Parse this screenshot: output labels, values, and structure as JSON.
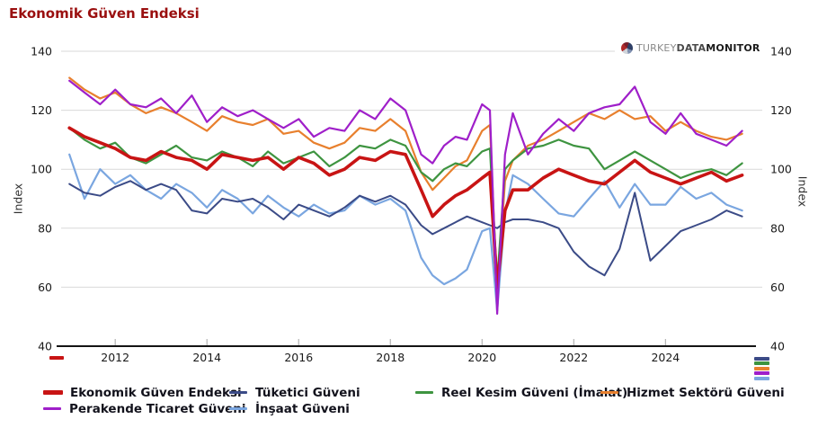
{
  "title": "Ekonomik Güven Endeksi",
  "logo": {
    "turkey": "TURKEY",
    "data": "DATA",
    "monitor": "MONITOR"
  },
  "chart_data": {
    "type": "line",
    "title": "Ekonomik Güven Endeksi",
    "ylabel_left": "Index",
    "ylabel_right": "Index",
    "ylim": [
      40,
      140
    ],
    "yticks": [
      40,
      60,
      80,
      100,
      120,
      140
    ],
    "xticks": [
      2012,
      2014,
      2016,
      2018,
      2020,
      2022,
      2024
    ],
    "xlim": [
      2010.82,
      2026.11
    ],
    "grid": "horizontal-light-gray",
    "legend_position": "bottom",
    "x_unit": "year (monthly index series)",
    "x": [
      2011.0,
      2011.33,
      2011.67,
      2012.0,
      2012.33,
      2012.67,
      2013.0,
      2013.33,
      2013.67,
      2014.0,
      2014.33,
      2014.67,
      2015.0,
      2015.33,
      2015.67,
      2016.0,
      2016.33,
      2016.67,
      2017.0,
      2017.33,
      2017.67,
      2018.0,
      2018.33,
      2018.67,
      2018.92,
      2019.17,
      2019.42,
      2019.67,
      2020.0,
      2020.17,
      2020.33,
      2020.5,
      2020.67,
      2021.0,
      2021.33,
      2021.67,
      2022.0,
      2022.33,
      2022.67,
      2023.0,
      2023.33,
      2023.67,
      2024.0,
      2024.33,
      2024.67,
      2025.0,
      2025.33,
      2025.67
    ],
    "series": [
      {
        "name": "Ekonomik Güven Endeksi",
        "color": "#c81414",
        "width": 3.6,
        "values": [
          114,
          111,
          109,
          107,
          104,
          103,
          106,
          104,
          103,
          100,
          105,
          104,
          103,
          104,
          100,
          104,
          102,
          98,
          100,
          104,
          103,
          106,
          105,
          93,
          84,
          88,
          91,
          93,
          97,
          99,
          60,
          86,
          93,
          93,
          97,
          100,
          98,
          96,
          95,
          99,
          103,
          99,
          97,
          95,
          97,
          99,
          96,
          98
        ]
      },
      {
        "name": "Tüketici Güveni",
        "color": "#3b4b87",
        "width": 2,
        "values": [
          95,
          92,
          91,
          94,
          96,
          93,
          95,
          93,
          86,
          85,
          90,
          89,
          90,
          87,
          83,
          88,
          86,
          84,
          87,
          91,
          89,
          91,
          88,
          81,
          78,
          80,
          82,
          84,
          82,
          81,
          80,
          82,
          83,
          83,
          82,
          80,
          72,
          67,
          64,
          73,
          92,
          69,
          74,
          79,
          81,
          83,
          86,
          84
        ]
      },
      {
        "name": "Reel Kesim Güveni (İmalat)",
        "color": "#3e9440",
        "width": 2.2,
        "values": [
          114,
          110,
          107,
          109,
          104,
          102,
          105,
          108,
          104,
          103,
          106,
          104,
          101,
          106,
          102,
          104,
          106,
          101,
          104,
          108,
          107,
          110,
          108,
          99,
          96,
          100,
          102,
          101,
          106,
          107,
          62,
          100,
          103,
          107,
          108,
          110,
          108,
          107,
          100,
          103,
          106,
          103,
          100,
          97,
          99,
          100,
          98,
          102
        ]
      },
      {
        "name": "Hizmet Sektörü Güveni",
        "color": "#e8802e",
        "width": 2.2,
        "values": [
          131,
          127,
          124,
          126,
          122,
          119,
          121,
          119,
          116,
          113,
          118,
          116,
          115,
          117,
          112,
          113,
          109,
          107,
          109,
          114,
          113,
          117,
          113,
          99,
          93,
          97,
          101,
          103,
          113,
          115,
          57,
          96,
          103,
          108,
          110,
          113,
          116,
          119,
          117,
          120,
          117,
          118,
          113,
          116,
          113,
          111,
          110,
          112
        ]
      },
      {
        "name": "Perakende Ticaret Güveni",
        "color": "#9f1fc9",
        "width": 2.2,
        "values": [
          130,
          126,
          122,
          127,
          122,
          121,
          124,
          119,
          125,
          116,
          121,
          118,
          120,
          117,
          114,
          117,
          111,
          114,
          113,
          120,
          117,
          124,
          120,
          105,
          102,
          108,
          111,
          110,
          122,
          120,
          51,
          105,
          119,
          105,
          112,
          117,
          113,
          119,
          121,
          122,
          128,
          116,
          112,
          119,
          112,
          110,
          108,
          113
        ]
      },
      {
        "name": "İnşaat Güveni",
        "color": "#7aa6e0",
        "width": 2.2,
        "values": [
          105,
          90,
          100,
          95,
          98,
          93,
          90,
          95,
          92,
          87,
          93,
          90,
          85,
          91,
          87,
          84,
          88,
          85,
          86,
          91,
          88,
          90,
          86,
          70,
          64,
          61,
          63,
          66,
          79,
          80,
          52,
          85,
          98,
          95,
          90,
          85,
          84,
          90,
          96,
          87,
          95,
          88,
          88,
          94,
          90,
          92,
          88,
          86
        ]
      }
    ]
  },
  "decorations": {
    "bottom_left_dash_color": "#c81414",
    "bottom_right_stack_colors": [
      "#3b4b87",
      "#3e9440",
      "#e8802e",
      "#9f1fc9",
      "#7aa6e0"
    ]
  }
}
